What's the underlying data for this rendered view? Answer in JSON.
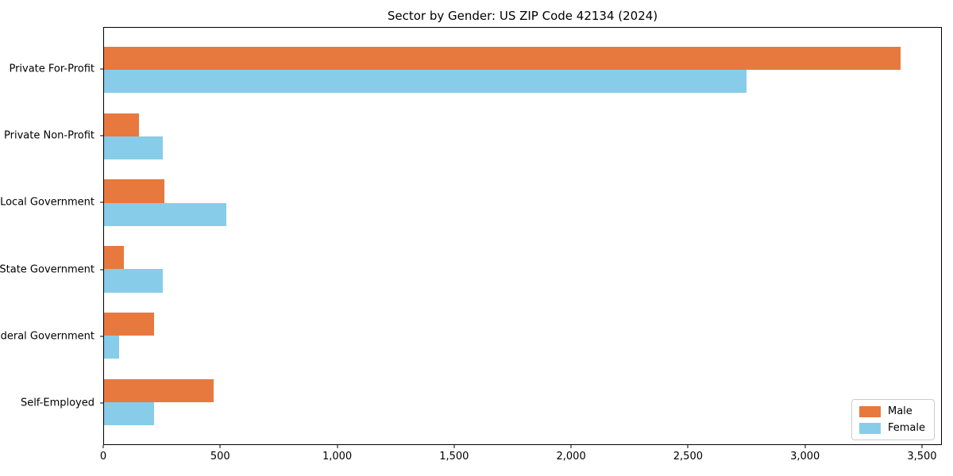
{
  "figure": {
    "background_color": "#ffffff",
    "text_color": "#000000"
  },
  "chart_data": {
    "type": "bar",
    "orientation": "horizontal",
    "title": "Sector by Gender: US ZIP Code 42134 (2024)",
    "categories": [
      "Private For-Profit",
      "Private Non-Profit",
      "Local Government",
      "State Government",
      "Federal Government",
      "Self-Employed"
    ],
    "series": [
      {
        "name": "Male",
        "color": "#e8793e",
        "values": [
          3410,
          150,
          260,
          85,
          215,
          470
        ]
      },
      {
        "name": "Female",
        "color": "#87cde9",
        "values": [
          2750,
          250,
          525,
          250,
          65,
          215
        ]
      }
    ],
    "xlabel": "",
    "ylabel": "",
    "xlim": [
      0,
      3585
    ],
    "xticks": [
      0,
      500,
      1000,
      1500,
      2000,
      2500,
      3000,
      3500
    ],
    "xtick_labels": [
      "0",
      "500",
      "1,000",
      "1,500",
      "2,000",
      "2,500",
      "3,000",
      "3,500"
    ],
    "grid": false,
    "legend_position": "lower right",
    "bar_height_units": 0.35,
    "y_margin_units": 0.635
  }
}
